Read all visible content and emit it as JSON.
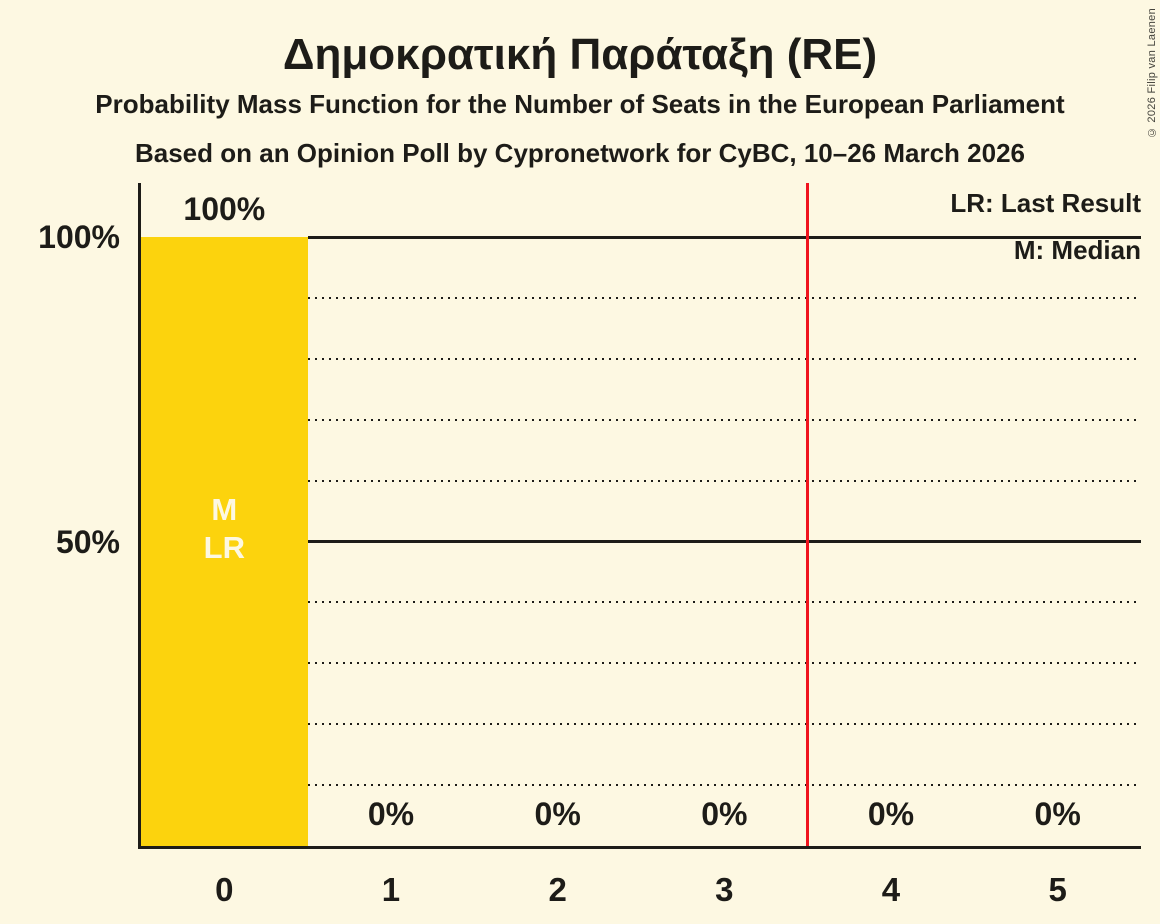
{
  "copyright": "© 2026 Filip van Laenen",
  "legend": {
    "last_result": "LR: Last Result",
    "median": "M: Median"
  },
  "chart_data": {
    "type": "bar",
    "title": "Δημοκρατική Παράταξη (RE)",
    "subtitle": "Probability Mass Function for the Number of Seats in the European Parliament",
    "source_line": "Based on an Opinion Poll by Cypronetwork for CyBC, 10–26 March 2026",
    "categories": [
      "0",
      "1",
      "2",
      "3",
      "4",
      "5"
    ],
    "values": [
      100,
      0,
      0,
      0,
      0,
      0
    ],
    "bar_labels": [
      "100%",
      "0%",
      "0%",
      "0%",
      "0%",
      "0%"
    ],
    "ylim": [
      0,
      100
    ],
    "y_ticks": [
      {
        "pct": 100,
        "label": "100%"
      },
      {
        "pct": 50,
        "label": "50%"
      }
    ],
    "gridlines": [
      {
        "pct": 100,
        "style": "solid"
      },
      {
        "pct": 90,
        "style": "dotted"
      },
      {
        "pct": 80,
        "style": "dotted"
      },
      {
        "pct": 70,
        "style": "dotted"
      },
      {
        "pct": 60,
        "style": "dotted"
      },
      {
        "pct": 50,
        "style": "solid"
      },
      {
        "pct": 40,
        "style": "dotted"
      },
      {
        "pct": 30,
        "style": "dotted"
      },
      {
        "pct": 20,
        "style": "dotted"
      },
      {
        "pct": 10,
        "style": "dotted"
      }
    ],
    "median_seats": 0,
    "last_result_seats": 0,
    "bar_annotations": [
      {
        "seat_index": 0,
        "lines": [
          "M",
          "LR"
        ]
      }
    ],
    "reference_line_x": 3.5,
    "legend_position": "top-right",
    "colors": {
      "background": "#FDF8E2",
      "bar": "#FCD30D",
      "text": "#1D1C18",
      "reference_line": "#F0141E",
      "bar_annotation_text": "#FDF8E2"
    }
  }
}
